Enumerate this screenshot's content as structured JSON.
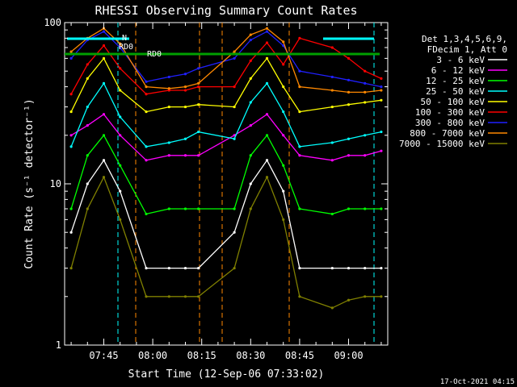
{
  "chart_data": {
    "type": "line",
    "title": "RHESSI Observing Summary Count Rates",
    "xlabel": "Start Time (12-Sep-06 07:33:02)",
    "ylabel": "Count Rate (s⁻¹ detector⁻¹)",
    "yscale": "log",
    "ylim": [
      1,
      100
    ],
    "xlim": [
      "07:33",
      "09:12"
    ],
    "x_ticks": [
      "07:45",
      "08:00",
      "08:15",
      "08:30",
      "08:45",
      "09:00"
    ],
    "y_ticks": [
      "1",
      "10",
      "100"
    ],
    "footer": "17-Oct-2021 04:15",
    "legend_header": [
      "Det 1,3,4,5,6,9,",
      "FDecim 1, Att 0"
    ],
    "markers": [
      {
        "label": "N",
        "color": "#00ffff"
      },
      {
        "label": "RD0",
        "color": "#00a000"
      },
      {
        "label": "RD0",
        "color": "#00a000"
      }
    ],
    "x": [
      "07:35",
      "07:40",
      "07:45",
      "07:50",
      "07:58",
      "08:05",
      "08:10",
      "08:14",
      "08:25",
      "08:30",
      "08:35",
      "08:40",
      "08:45",
      "08:55",
      "09:00",
      "09:05",
      "09:10"
    ],
    "series": [
      {
        "name": "3 - 6 keV",
        "color": "#ffffff",
        "values": [
          5,
          10,
          14,
          9,
          3,
          3,
          3,
          3,
          5,
          10,
          14,
          9,
          3,
          3,
          3,
          3,
          3
        ]
      },
      {
        "name": "6 - 12 keV",
        "color": "#ff00ff",
        "values": [
          20,
          23,
          27,
          20,
          14,
          15,
          15,
          15,
          20,
          23,
          27,
          20,
          15,
          14,
          15,
          15,
          16
        ]
      },
      {
        "name": "12 - 25 keV",
        "color": "#00ff00",
        "values": [
          7,
          15,
          20,
          13,
          6.5,
          7,
          7,
          7,
          7,
          15,
          20,
          13,
          7,
          6.5,
          7,
          7,
          7
        ]
      },
      {
        "name": "25 - 50 keV",
        "color": "#00ffff",
        "values": [
          17,
          30,
          42,
          26,
          17,
          18,
          19,
          21,
          19,
          32,
          42,
          28,
          17,
          18,
          19,
          20,
          21
        ]
      },
      {
        "name": "50 - 100 keV",
        "color": "#ffff00",
        "values": [
          28,
          45,
          60,
          38,
          28,
          30,
          30,
          31,
          30,
          45,
          60,
          40,
          28,
          30,
          31,
          32,
          33
        ]
      },
      {
        "name": "100 - 300 keV",
        "color": "#ff0000",
        "values": [
          36,
          55,
          72,
          52,
          36,
          38,
          38,
          40,
          40,
          58,
          75,
          55,
          80,
          70,
          60,
          50,
          45
        ]
      },
      {
        "name": "300 - 800 keV",
        "color": "#2020ff",
        "values": [
          60,
          78,
          88,
          70,
          43,
          46,
          48,
          52,
          60,
          78,
          88,
          72,
          50,
          46,
          44,
          42,
          40
        ]
      },
      {
        "name": "800 - 7000 keV",
        "color": "#ff8800",
        "values": [
          66,
          80,
          92,
          74,
          40,
          39,
          40,
          42,
          66,
          84,
          92,
          76,
          40,
          38,
          37,
          37,
          38
        ]
      },
      {
        "name": "7000 - 15000 keV",
        "color": "#808000",
        "values": [
          3,
          7,
          11,
          6,
          2,
          2,
          2,
          2,
          3,
          7,
          11,
          6,
          2,
          1.7,
          1.9,
          2,
          2
        ]
      }
    ]
  }
}
